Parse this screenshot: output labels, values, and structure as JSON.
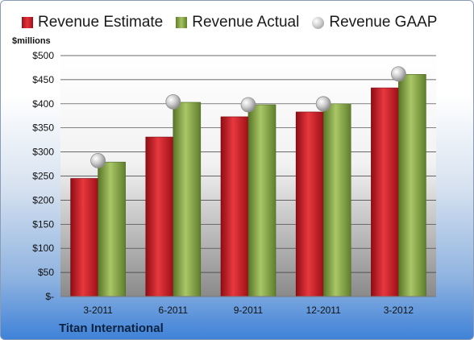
{
  "chart_data": {
    "type": "bar",
    "ylabel": "$millions",
    "caption": "Titan International",
    "categories": [
      "3-2011",
      "6-2011",
      "9-2011",
      "12-2011",
      "3-2012"
    ],
    "series": [
      {
        "name": "Revenue Estimate",
        "kind": "bar",
        "color": "#d62a2f",
        "values": [
          245,
          331,
          373,
          383,
          433
        ]
      },
      {
        "name": "Revenue Actual",
        "kind": "bar",
        "color": "#8fae4f",
        "values": [
          279,
          403,
          398,
          400,
          461
        ]
      },
      {
        "name": "Revenue GAAP",
        "kind": "marker",
        "color": "#b8b8b8",
        "values": [
          282,
          404,
          398,
          400,
          462
        ]
      }
    ],
    "ylim": [
      0,
      500
    ],
    "yticks": [
      0,
      50,
      100,
      150,
      200,
      250,
      300,
      350,
      400,
      450,
      500
    ],
    "ytick_labels": [
      "$-",
      "$50",
      "$100",
      "$150",
      "$200",
      "$250",
      "$300",
      "$350",
      "$400",
      "$450",
      "$500"
    ],
    "grid": true,
    "legend": "top"
  }
}
